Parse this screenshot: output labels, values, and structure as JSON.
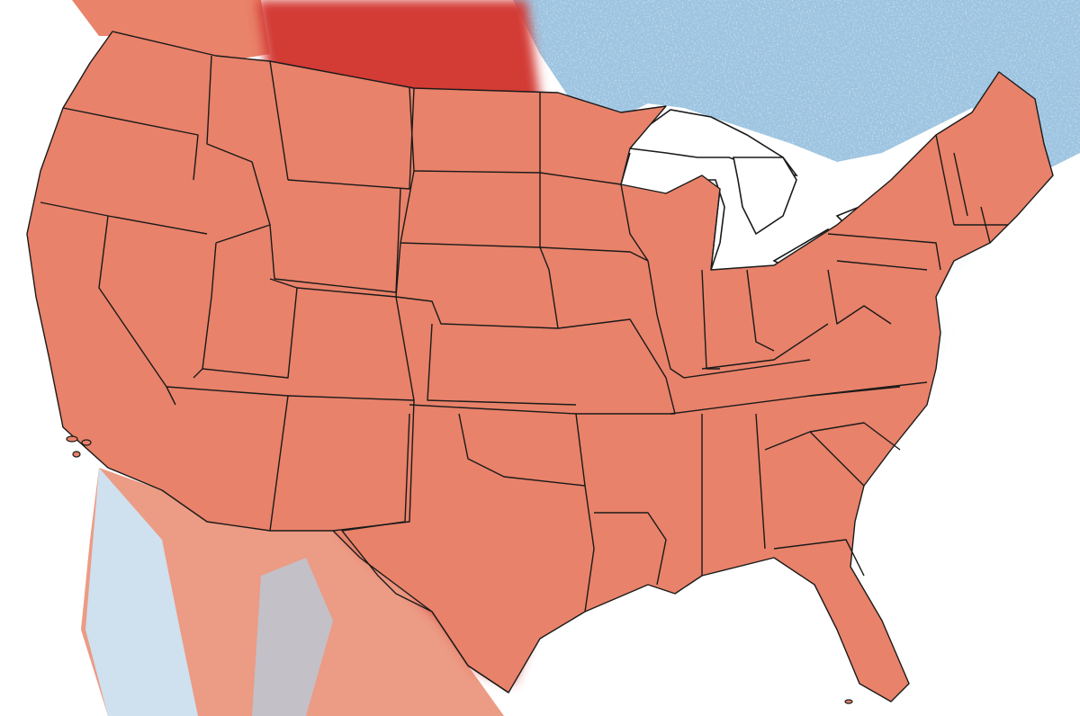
{
  "map": {
    "subject": "contiguous-united-states",
    "projection": "albers-like",
    "colors": {
      "background": "#ffffff",
      "deep_red": "#d13a34",
      "red": "#df5b49",
      "salmon": "#ec8c72",
      "pale_salmon": "#f6c2ae",
      "pale_blue": "#b9d6ea",
      "blue": "#86b6d8",
      "state_border": "#1a1a1a",
      "water": "#ffffff"
    },
    "legend": null
  }
}
